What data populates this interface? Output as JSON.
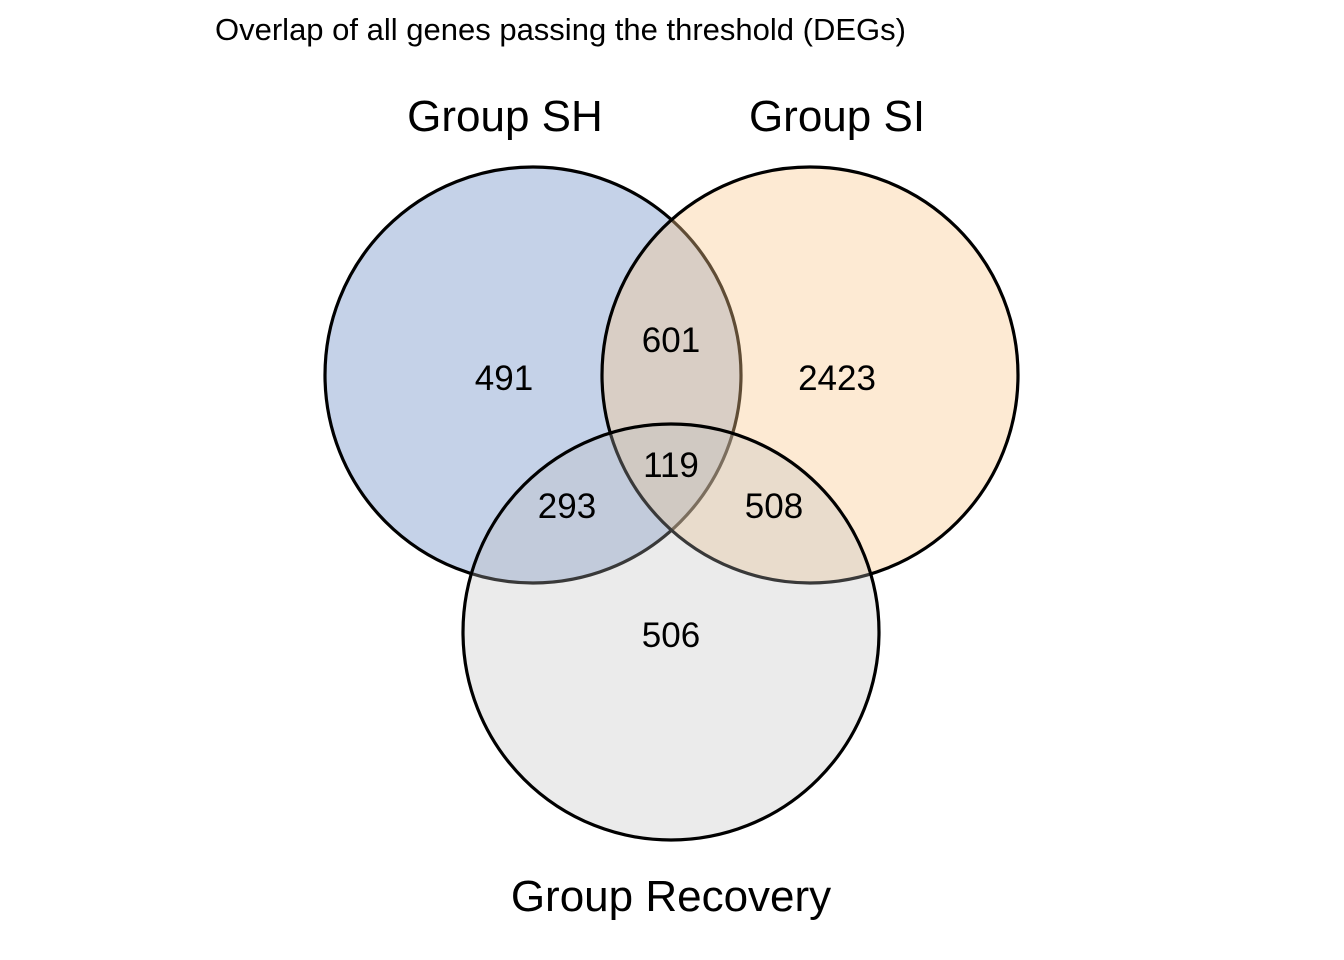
{
  "title": "Overlap of all genes passing the threshold (DEGs)",
  "sets": [
    {
      "id": "sh",
      "label": "Group SH",
      "color": "#4a72b8"
    },
    {
      "id": "si",
      "label": "Group SI",
      "color": "#fbc88b"
    },
    {
      "id": "rec",
      "label": "Group Recovery",
      "color": "#bdbdbd"
    }
  ],
  "regions": {
    "sh_only": "491",
    "si_only": "2423",
    "rec_only": "506",
    "sh_si": "601",
    "sh_rec": "293",
    "si_rec": "508",
    "all_three": "119"
  }
}
